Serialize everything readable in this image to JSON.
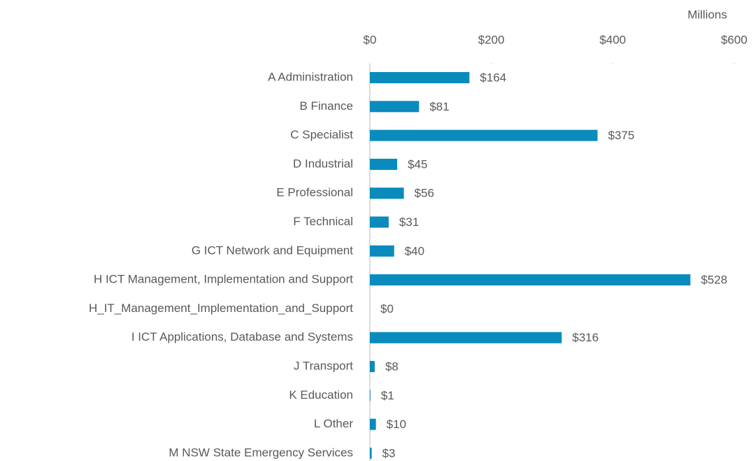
{
  "chart_data": {
    "type": "bar",
    "orientation": "horizontal",
    "x_label": "Millions",
    "categories": [
      "A Administration",
      "B Finance",
      "C Specialist",
      "D Industrial",
      "E Professional",
      "F Technical",
      "G ICT Network and Equipment",
      "H ICT Management, Implementation and Support",
      "H_IT_Management_Implementation_and_Support",
      "I ICT Applications, Database and Systems",
      "J Transport",
      "K Education",
      "L Other",
      "M NSW State Emergency Services"
    ],
    "values": [
      164,
      81,
      375,
      45,
      56,
      31,
      40,
      528,
      0,
      316,
      8,
      1,
      10,
      3
    ],
    "value_labels": [
      "$164",
      "$81",
      "$375",
      "$45",
      "$56",
      "$31",
      "$40",
      "$528",
      "$0",
      "$316",
      "$8",
      "$1",
      "$10",
      "$3"
    ],
    "color": "#0a8bbd",
    "xlim": [
      0,
      600
    ],
    "xticks": [
      {
        "value": 0,
        "label": "$0"
      },
      {
        "value": 200,
        "label": "$200"
      },
      {
        "value": 400,
        "label": "$400"
      },
      {
        "value": 600,
        "label": "$600"
      }
    ],
    "grid": false
  }
}
